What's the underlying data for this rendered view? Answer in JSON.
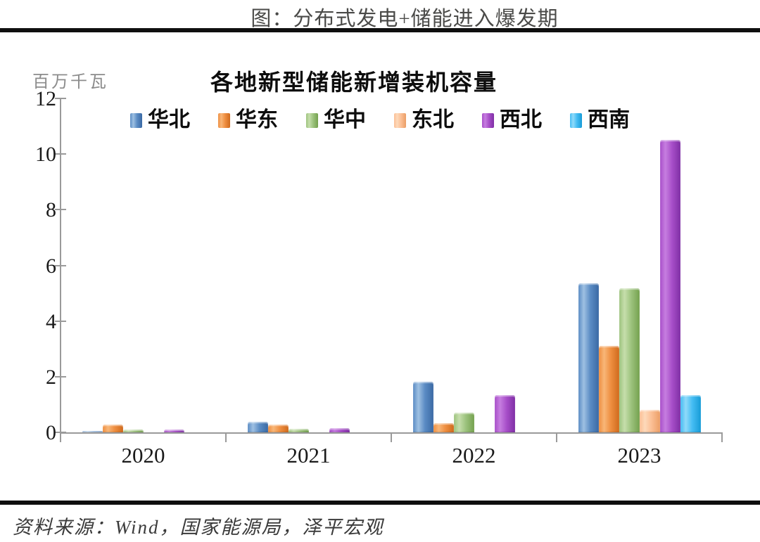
{
  "page": {
    "title": "图：分布式发电+储能进入爆发期",
    "source": "资料来源：Wind，国家能源局，泽平宏观"
  },
  "chart_data": {
    "type": "bar",
    "title": "各地新型储能新增装机容量",
    "ylabel": "百万千瓦",
    "xlabel": "",
    "categories": [
      "2020",
      "2021",
      "2022",
      "2023"
    ],
    "series": [
      {
        "name": "华北",
        "values": [
          0.06,
          0.37,
          1.82,
          5.35
        ],
        "color": {
          "light": "#9ec0e2",
          "mid": "#5b8cc4",
          "dark": "#3a69a4"
        }
      },
      {
        "name": "华东",
        "values": [
          0.27,
          0.27,
          0.34,
          3.1
        ],
        "color": {
          "light": "#f8b678",
          "mid": "#ef8f41",
          "dark": "#cf6a1d"
        }
      },
      {
        "name": "华中",
        "values": [
          0.09,
          0.13,
          0.7,
          5.18
        ],
        "color": {
          "light": "#c6deac",
          "mid": "#9dc37e",
          "dark": "#74a14e"
        }
      },
      {
        "name": "东北",
        "values": [
          0,
          0,
          0,
          0.8
        ],
        "color": {
          "light": "#fdd9ba",
          "mid": "#fbbf95",
          "dark": "#eb9e66"
        }
      },
      {
        "name": "西北",
        "values": [
          0.09,
          0.15,
          1.35,
          10.5
        ],
        "color": {
          "light": "#c67ee0",
          "mid": "#a84fc9",
          "dark": "#7f2fa5"
        }
      },
      {
        "name": "西南",
        "values": [
          0,
          0,
          0,
          1.35
        ],
        "color": {
          "light": "#90daf9",
          "mid": "#45bdf3",
          "dark": "#179bd7"
        }
      }
    ],
    "ylim": [
      0,
      12
    ],
    "yticks": [
      0,
      2,
      4,
      6,
      8,
      10,
      12
    ],
    "grid": false,
    "legend_position": "top",
    "axis_color": "#9a9a9a"
  }
}
